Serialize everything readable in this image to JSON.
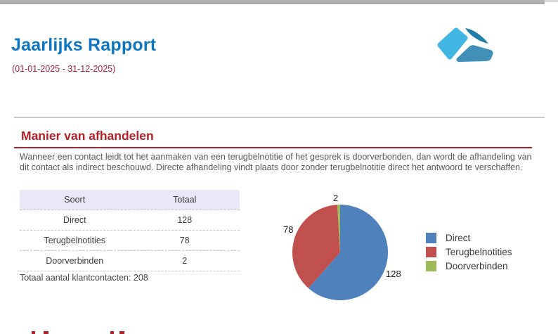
{
  "report": {
    "title": "Jaarlijks Rapport",
    "date_range": "(01-01-2025 - 31-12-2025)"
  },
  "section": {
    "heading": "Manier van afhandelen",
    "description": "Wanneer een contact leidt tot het aanmaken van een terugbelnotitie of het gesprek is doorverbonden, dan wordt de afhandeling van dit contact als indirect beschouwd. Directe afhandeling vindt plaats door zonder terugbelnotitie direct het antwoord te verschaffen.",
    "table": {
      "columns": [
        "Soort",
        "Totaal"
      ],
      "rows": [
        [
          "Direct",
          "128"
        ],
        [
          "Terugbelnotities",
          "78"
        ],
        [
          "Doorverbinden",
          "2"
        ]
      ],
      "summary": "Totaal aantal klantcontacten: 208"
    }
  },
  "chart_data": {
    "type": "pie",
    "title": "",
    "categories": [
      "Direct",
      "Terugbelnotities",
      "Doorverbinden"
    ],
    "values": [
      128,
      78,
      2
    ],
    "colors": [
      "#4f81bd",
      "#c0504d",
      "#9bbb59"
    ],
    "total": 208,
    "data_labels": [
      "128",
      "78",
      "2"
    ],
    "legend_position": "right",
    "start_angle_deg": 0,
    "direction": "clockwise"
  },
  "branding": {
    "logo_colors": {
      "light_blue": "#41b6e2",
      "dark_blue": "#1f7fa9",
      "mid_blue": "#4090b8"
    }
  },
  "theme": {
    "title_color": "#0e76c0",
    "date_color": "#a41e38",
    "heading_color": "#b32025",
    "body_text_color": "#595959",
    "table_header_bg": "#e9e8f7",
    "topbar_color": "#b3b3b3"
  }
}
